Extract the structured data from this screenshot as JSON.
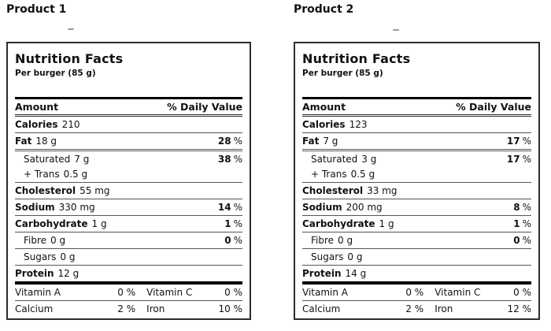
{
  "products": [
    {
      "title": "Product 1",
      "label": {
        "heading": "Nutrition Facts",
        "serving": "Per burger (85 g)",
        "columns": {
          "amount": "Amount",
          "daily_value": "% Daily Value"
        },
        "rows": [
          {
            "name": "Calories",
            "amount": "210",
            "dv_num": "",
            "dv_unit": ""
          },
          {
            "name": "Fat",
            "amount": "18 g",
            "dv_num": "28",
            "dv_unit": "%"
          },
          {
            "name": "Saturated",
            "amount": "7 g",
            "dv_num": "38",
            "dv_unit": "%"
          },
          {
            "name": "+ Trans",
            "amount": "0.5 g",
            "dv_num": "",
            "dv_unit": ""
          },
          {
            "name": "Cholesterol",
            "amount": "55 mg",
            "dv_num": "",
            "dv_unit": ""
          },
          {
            "name": "Sodium",
            "amount": "330 mg",
            "dv_num": "14",
            "dv_unit": "%"
          },
          {
            "name": "Carbohydrate",
            "amount": "1 g",
            "dv_num": "1",
            "dv_unit": "%"
          },
          {
            "name": "Fibre",
            "amount": "0 g",
            "dv_num": "0",
            "dv_unit": "%"
          },
          {
            "name": "Sugars",
            "amount": "0 g",
            "dv_num": "",
            "dv_unit": ""
          },
          {
            "name": "Protein",
            "amount": "12 g",
            "dv_num": "",
            "dv_unit": ""
          }
        ],
        "micros": [
          {
            "l1": "Vitamin A",
            "v1": "0 %",
            "l2": "Vitamin C",
            "v2": "0 %"
          },
          {
            "l1": "Calcium",
            "v1": "2 %",
            "l2": "Iron",
            "v2": "10 %"
          }
        ]
      }
    },
    {
      "title": "Product 2",
      "label": {
        "heading": "Nutrition Facts",
        "serving": "Per burger (85 g)",
        "columns": {
          "amount": "Amount",
          "daily_value": "% Daily Value"
        },
        "rows": [
          {
            "name": "Calories",
            "amount": "123",
            "dv_num": "",
            "dv_unit": ""
          },
          {
            "name": "Fat",
            "amount": "7 g",
            "dv_num": "17",
            "dv_unit": "%"
          },
          {
            "name": "Saturated",
            "amount": "3 g",
            "dv_num": "17",
            "dv_unit": "%"
          },
          {
            "name": "+ Trans",
            "amount": "0.5 g",
            "dv_num": "",
            "dv_unit": ""
          },
          {
            "name": "Cholesterol",
            "amount": "33 mg",
            "dv_num": "",
            "dv_unit": ""
          },
          {
            "name": "Sodium",
            "amount": "200 mg",
            "dv_num": "8",
            "dv_unit": "%"
          },
          {
            "name": "Carbohydrate",
            "amount": "1 g",
            "dv_num": "1",
            "dv_unit": "%"
          },
          {
            "name": "Fibre",
            "amount": "0 g",
            "dv_num": "0",
            "dv_unit": "%"
          },
          {
            "name": "Sugars",
            "amount": "0 g",
            "dv_num": "",
            "dv_unit": ""
          },
          {
            "name": "Protein",
            "amount": "14 g",
            "dv_num": "",
            "dv_unit": ""
          }
        ],
        "micros": [
          {
            "l1": "Vitamin A",
            "v1": "0 %",
            "l2": "Vitamin C",
            "v2": "0 %"
          },
          {
            "l1": "Calcium",
            "v1": "2 %",
            "l2": "Iron",
            "v2": "12 %"
          }
        ]
      }
    }
  ]
}
